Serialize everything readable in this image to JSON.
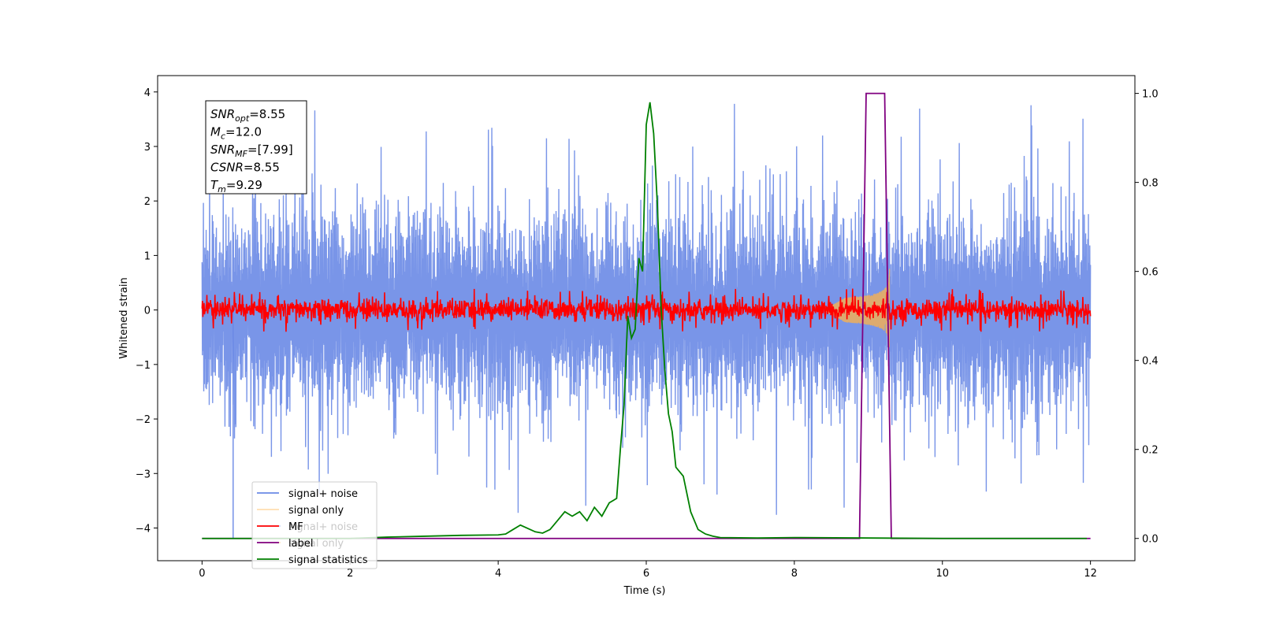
{
  "chart_data": {
    "type": "line",
    "title": "",
    "xlabel": "Time (s)",
    "ylabel": "Whitened strain",
    "xlim": [
      -0.6,
      12.6
    ],
    "ylim": [
      -4.6,
      4.3
    ],
    "ylim_right": [
      -0.05,
      1.04
    ],
    "x_ticks": [
      0,
      2,
      4,
      6,
      8,
      10,
      12
    ],
    "y_ticks": [
      -4,
      -3,
      -2,
      -1,
      0,
      1,
      2,
      3,
      4
    ],
    "y_right_ticks": [
      0.0,
      0.2,
      0.4,
      0.6,
      0.8,
      1.0
    ],
    "grid": false,
    "legend_position": "lower-left",
    "legend": [
      "signal+ noise",
      "signal only",
      "MF",
      "label",
      "signal statistics"
    ],
    "ghost_legend": [
      "signal+ noise",
      "signal only"
    ],
    "annotation": {
      "lines": [
        {
          "sym": "SNR",
          "sub": "opt",
          "val": "=8.55"
        },
        {
          "sym": "M",
          "sub": "c",
          "val": "=12.0"
        },
        {
          "sym": "SNR",
          "sub": "MF",
          "val": "=[7.99]"
        },
        {
          "sym": "CSNR",
          "sub": "",
          "val": "=8.55"
        },
        {
          "sym": "T",
          "sub": "m",
          "val": "=9.29"
        }
      ]
    },
    "colors": {
      "noise": "#6a89e6",
      "signal": "#ffb347",
      "mf": "#ff0000",
      "label": "#800080",
      "stat": "#008000"
    },
    "series": [
      {
        "name": "signal+ noise",
        "axis": "left",
        "x_range": [
          0,
          12
        ],
        "envelope_typical": 1.6,
        "envelope_peak": 3.9,
        "min_outlier": -4.2
      },
      {
        "name": "signal only",
        "axis": "left",
        "x_range": [
          8.4,
          9.29
        ],
        "amplitude_at_merger": 0.8
      },
      {
        "name": "MF",
        "axis": "left",
        "x_range": [
          0,
          12
        ],
        "envelope_typical": 0.2
      },
      {
        "name": "label",
        "axis": "right",
        "x": [
          0,
          8.88,
          8.97,
          9.22,
          9.31,
          12
        ],
        "y": [
          0,
          0,
          1,
          1,
          0,
          0
        ]
      },
      {
        "name": "signal statistics",
        "axis": "right",
        "x": [
          0,
          0.5,
          1,
          1.5,
          2,
          2.5,
          3,
          3.5,
          4,
          4.1,
          4.2,
          4.3,
          4.5,
          4.6,
          4.7,
          4.8,
          4.9,
          5.0,
          5.1,
          5.2,
          5.3,
          5.4,
          5.5,
          5.55,
          5.6,
          5.65,
          5.7,
          5.75,
          5.8,
          5.85,
          5.9,
          5.95,
          6.0,
          6.05,
          6.1,
          6.15,
          6.2,
          6.25,
          6.3,
          6.35,
          6.4,
          6.5,
          6.6,
          6.7,
          6.8,
          6.9,
          7.0,
          7.5,
          8,
          9,
          10,
          11,
          11.95
        ],
        "y": [
          0.0,
          0.0,
          0.0,
          0.0,
          0.0,
          0.003,
          0.005,
          0.007,
          0.008,
          0.01,
          0.02,
          0.03,
          0.015,
          0.012,
          0.02,
          0.04,
          0.06,
          0.05,
          0.06,
          0.04,
          0.07,
          0.05,
          0.08,
          0.085,
          0.09,
          0.2,
          0.3,
          0.5,
          0.45,
          0.47,
          0.63,
          0.6,
          0.93,
          0.98,
          0.91,
          0.75,
          0.52,
          0.38,
          0.28,
          0.24,
          0.16,
          0.14,
          0.06,
          0.02,
          0.01,
          0.005,
          0.002,
          0.001,
          0.002,
          0.001,
          0.0,
          0.0,
          0.0
        ]
      }
    ]
  }
}
